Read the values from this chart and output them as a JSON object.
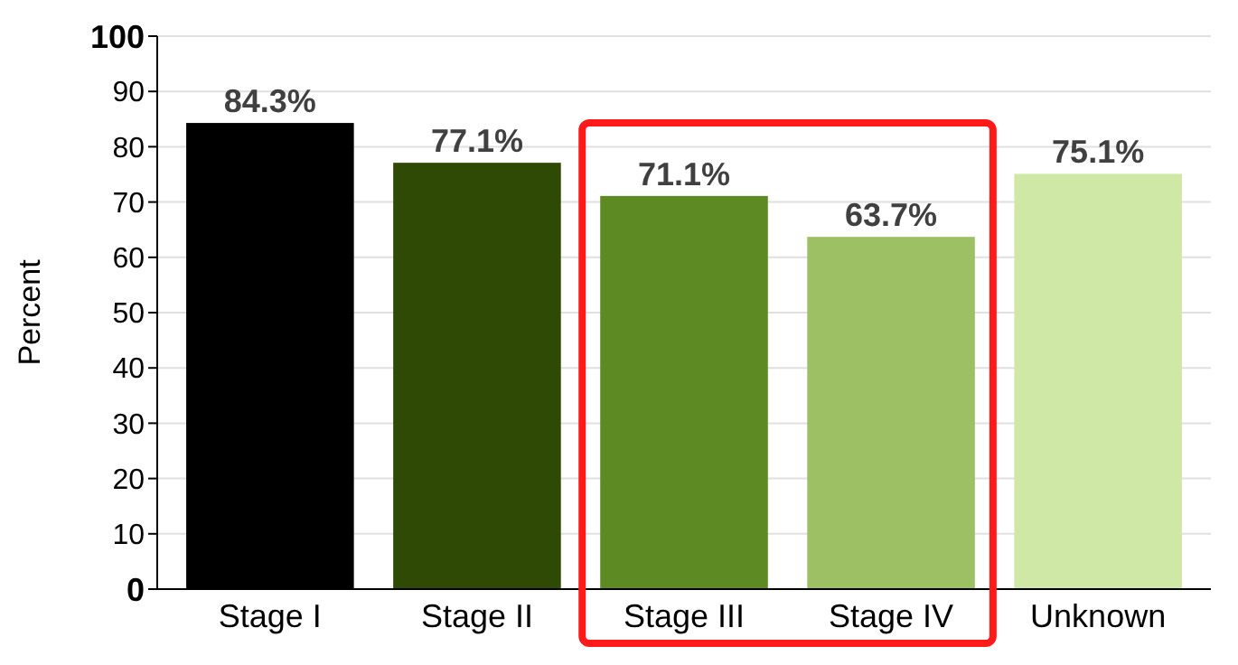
{
  "chart_data": {
    "type": "bar",
    "ylabel": "Percent",
    "categories": [
      "Stage I",
      "Stage II",
      "Stage III",
      "Stage IV",
      "Unknown"
    ],
    "values": [
      84.3,
      77.1,
      71.1,
      63.7,
      75.1
    ],
    "colors": [
      "#000000",
      "#2e4a04",
      "#5e8a24",
      "#9cc063",
      "#d0e8a6"
    ],
    "value_labels": [
      "84.3%",
      "77.1%",
      "71.1%",
      "63.7%",
      "75.1%"
    ],
    "ylim": [
      0,
      100
    ],
    "yticks": [
      0,
      10,
      20,
      30,
      40,
      50,
      60,
      70,
      80,
      90,
      100
    ],
    "grid": "y"
  }
}
